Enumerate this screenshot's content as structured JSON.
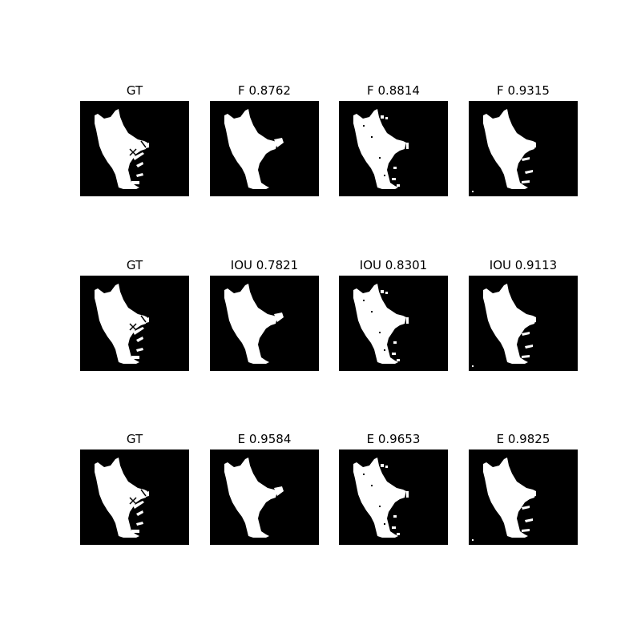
{
  "colors": {
    "background": "#ffffff",
    "mask_background": "#000000",
    "foreground": "#ffffff"
  },
  "rows": [
    {
      "panels": [
        {
          "title": "GT",
          "variant": "gt"
        },
        {
          "title": "F 0.8762",
          "variant": "smooth"
        },
        {
          "title": "F 0.8814",
          "variant": "noisy"
        },
        {
          "title": "F 0.9315",
          "variant": "fine"
        }
      ]
    },
    {
      "panels": [
        {
          "title": "GT",
          "variant": "gt"
        },
        {
          "title": "IOU 0.7821",
          "variant": "smooth"
        },
        {
          "title": "IOU 0.8301",
          "variant": "noisy"
        },
        {
          "title": "IOU 0.9113",
          "variant": "fine"
        }
      ]
    },
    {
      "panels": [
        {
          "title": "GT",
          "variant": "gt"
        },
        {
          "title": "E 0.9584",
          "variant": "smooth"
        },
        {
          "title": "E 0.9653",
          "variant": "noisy"
        },
        {
          "title": "E 0.9825",
          "variant": "fine"
        }
      ]
    }
  ]
}
